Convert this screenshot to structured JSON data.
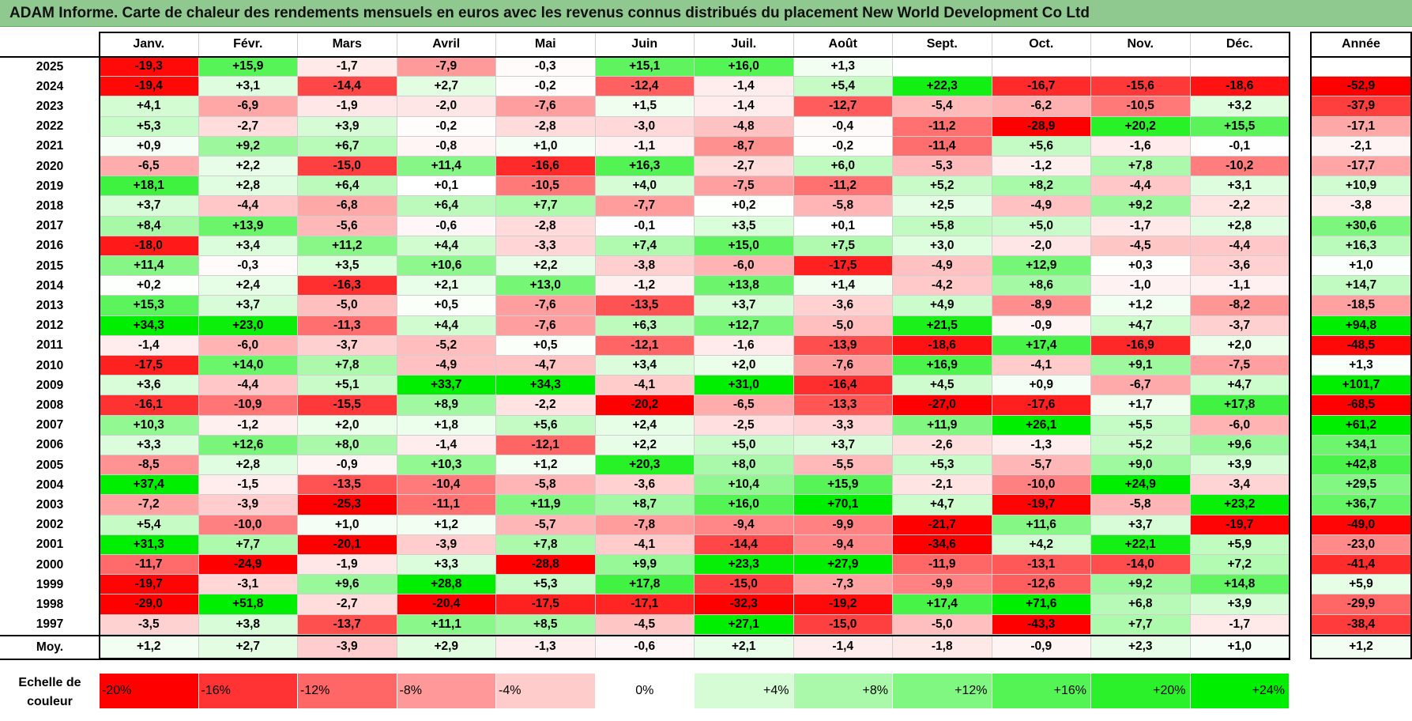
{
  "title": "ADAM Informe. Carte de chaleur des rendements mensuels en euros avec les revenus connus distribués du placement New World Development Co Ltd",
  "colors": {
    "title_bg": "#8fc98f",
    "red_strong": "#ff0000",
    "green_strong": "#00ee00",
    "neutral": "#ffffff"
  },
  "chart_data": {
    "type": "heatmap",
    "title": "ADAM Informe. Carte de chaleur des rendements mensuels en euros avec les revenus connus distribués du placement New World Development Co Ltd",
    "months": [
      "Janv.",
      "Févr.",
      "Mars",
      "Avril",
      "Mai",
      "Juin",
      "Juil.",
      "Août",
      "Sept.",
      "Oct.",
      "Nov.",
      "Déc."
    ],
    "year_header": "Année",
    "rows": [
      {
        "year": "2025",
        "values": [
          "-19,3",
          "+15,9",
          "-1,7",
          "-7,9",
          "-0,3",
          "+15,1",
          "+16,0",
          "+1,3",
          "",
          "",
          "",
          ""
        ],
        "annual": ""
      },
      {
        "year": "2024",
        "values": [
          "-19,4",
          "+3,1",
          "-14,4",
          "+2,7",
          "-0,2",
          "-12,4",
          "-1,4",
          "+5,4",
          "+22,3",
          "-16,7",
          "-15,6",
          "-18,6"
        ],
        "annual": "-52,9"
      },
      {
        "year": "2023",
        "values": [
          "+4,1",
          "-6,9",
          "-1,9",
          "-2,0",
          "-7,6",
          "+1,5",
          "-1,4",
          "-12,7",
          "-5,4",
          "-6,2",
          "-10,5",
          "+3,2"
        ],
        "annual": "-37,9"
      },
      {
        "year": "2022",
        "values": [
          "+5,3",
          "-2,7",
          "+3,9",
          "-0,2",
          "-2,8",
          "-3,0",
          "-4,8",
          "-0,4",
          "-11,2",
          "-28,9",
          "+20,2",
          "+15,5"
        ],
        "annual": "-17,1"
      },
      {
        "year": "2021",
        "values": [
          "+0,9",
          "+9,2",
          "+6,7",
          "-0,8",
          "+1,0",
          "-1,1",
          "-8,7",
          "-0,2",
          "-11,4",
          "+5,6",
          "-1,6",
          "-0,1"
        ],
        "annual": "-2,1"
      },
      {
        "year": "2020",
        "values": [
          "-6,5",
          "+2,2",
          "-15,0",
          "+11,4",
          "-16,6",
          "+16,3",
          "-2,7",
          "+6,0",
          "-5,3",
          "-1,2",
          "+7,8",
          "-10,2"
        ],
        "annual": "-17,7"
      },
      {
        "year": "2019",
        "values": [
          "+18,1",
          "+2,8",
          "+6,4",
          "+0,1",
          "-10,5",
          "+4,0",
          "-7,5",
          "-11,2",
          "+5,2",
          "+8,2",
          "-4,4",
          "+3,1"
        ],
        "annual": "+10,9"
      },
      {
        "year": "2018",
        "values": [
          "+3,7",
          "-4,4",
          "-6,8",
          "+6,4",
          "+7,7",
          "-7,7",
          "+0,2",
          "-5,8",
          "+2,5",
          "-4,9",
          "+9,2",
          "-2,2"
        ],
        "annual": "-3,8"
      },
      {
        "year": "2017",
        "values": [
          "+8,4",
          "+13,9",
          "-5,6",
          "-0,6",
          "-2,8",
          "-0,1",
          "+3,5",
          "+0,1",
          "+5,8",
          "+5,0",
          "-1,7",
          "+2,8"
        ],
        "annual": "+30,6"
      },
      {
        "year": "2016",
        "values": [
          "-18,0",
          "+3,4",
          "+11,2",
          "+4,4",
          "-3,3",
          "+7,4",
          "+15,0",
          "+7,5",
          "+3,0",
          "-2,0",
          "-4,5",
          "-4,4"
        ],
        "annual": "+16,3"
      },
      {
        "year": "2015",
        "values": [
          "+11,4",
          "-0,3",
          "+3,5",
          "+10,6",
          "+2,2",
          "-3,8",
          "-6,0",
          "-17,5",
          "-4,9",
          "+12,9",
          "+0,3",
          "-3,6"
        ],
        "annual": "+1,0"
      },
      {
        "year": "2014",
        "values": [
          "+0,2",
          "+2,4",
          "-16,3",
          "+2,1",
          "+13,0",
          "-1,2",
          "+13,8",
          "+1,4",
          "-4,2",
          "+8,6",
          "-1,0",
          "-1,1"
        ],
        "annual": "+14,7"
      },
      {
        "year": "2013",
        "values": [
          "+15,3",
          "+3,7",
          "-5,0",
          "+0,5",
          "-7,6",
          "-13,5",
          "+3,7",
          "-3,6",
          "+4,9",
          "-8,9",
          "+1,2",
          "-8,2"
        ],
        "annual": "-18,5"
      },
      {
        "year": "2012",
        "values": [
          "+34,3",
          "+23,0",
          "-11,3",
          "+4,4",
          "-7,6",
          "+6,3",
          "+12,7",
          "-5,0",
          "+21,5",
          "-0,9",
          "+4,7",
          "-3,7"
        ],
        "annual": "+94,8"
      },
      {
        "year": "2011",
        "values": [
          "-1,4",
          "-6,0",
          "-3,7",
          "-5,2",
          "+0,5",
          "-12,1",
          "-1,6",
          "-13,9",
          "-18,6",
          "+17,4",
          "-16,9",
          "+2,0"
        ],
        "annual": "-48,5"
      },
      {
        "year": "2010",
        "values": [
          "-17,5",
          "+14,0",
          "+7,8",
          "-4,9",
          "-4,7",
          "+3,4",
          "+2,0",
          "-7,6",
          "+16,9",
          "-4,1",
          "+9,1",
          "-7,5"
        ],
        "annual": "+1,3"
      },
      {
        "year": "2009",
        "values": [
          "+3,6",
          "-4,4",
          "+5,1",
          "+33,7",
          "+34,3",
          "-4,1",
          "+31,0",
          "-16,4",
          "+4,5",
          "+0,9",
          "-6,7",
          "+4,7"
        ],
        "annual": "+101,7"
      },
      {
        "year": "2008",
        "values": [
          "-16,1",
          "-10,9",
          "-15,5",
          "+8,9",
          "-2,2",
          "-20,2",
          "-6,5",
          "-13,3",
          "-27,0",
          "-17,6",
          "+1,7",
          "+17,8"
        ],
        "annual": "-68,5"
      },
      {
        "year": "2007",
        "values": [
          "+10,3",
          "-1,2",
          "+2,0",
          "+1,8",
          "+5,6",
          "+2,4",
          "-2,5",
          "-3,3",
          "+11,9",
          "+26,1",
          "+5,5",
          "-6,0"
        ],
        "annual": "+61,2"
      },
      {
        "year": "2006",
        "values": [
          "+3,3",
          "+12,6",
          "+8,0",
          "-1,4",
          "-12,1",
          "+2,2",
          "+5,0",
          "+3,7",
          "-2,6",
          "-1,3",
          "+5,2",
          "+9,6"
        ],
        "annual": "+34,1"
      },
      {
        "year": "2005",
        "values": [
          "-8,5",
          "+2,8",
          "-0,9",
          "+10,3",
          "+1,2",
          "+20,3",
          "+8,0",
          "-5,5",
          "+5,3",
          "-5,7",
          "+9,0",
          "+3,9"
        ],
        "annual": "+42,8"
      },
      {
        "year": "2004",
        "values": [
          "+37,4",
          "-1,5",
          "-13,5",
          "-10,4",
          "-5,8",
          "-3,6",
          "+10,4",
          "+15,9",
          "-2,1",
          "-10,0",
          "+24,9",
          "-3,4"
        ],
        "annual": "+29,5"
      },
      {
        "year": "2003",
        "values": [
          "-7,2",
          "-3,9",
          "-25,3",
          "-11,1",
          "+11,9",
          "+8,7",
          "+16,0",
          "+70,1",
          "+4,7",
          "-19,7",
          "-5,8",
          "+23,2"
        ],
        "annual": "+36,7"
      },
      {
        "year": "2002",
        "values": [
          "+5,4",
          "-10,0",
          "+1,0",
          "+1,2",
          "-5,7",
          "-7,8",
          "-9,4",
          "-9,9",
          "-21,7",
          "+11,6",
          "+3,7",
          "-19,7"
        ],
        "annual": "-49,0"
      },
      {
        "year": "2001",
        "values": [
          "+31,3",
          "+7,7",
          "-20,1",
          "-3,9",
          "+7,8",
          "-4,1",
          "-14,4",
          "-9,4",
          "-34,6",
          "+4,2",
          "+22,1",
          "+5,9"
        ],
        "annual": "-23,0"
      },
      {
        "year": "2000",
        "values": [
          "-11,7",
          "-24,9",
          "-1,9",
          "+3,3",
          "-28,8",
          "+9,9",
          "+23,3",
          "+27,9",
          "-11,9",
          "-13,1",
          "-14,0",
          "+7,2"
        ],
        "annual": "-41,4"
      },
      {
        "year": "1999",
        "values": [
          "-19,7",
          "-3,1",
          "+9,6",
          "+28,8",
          "+5,3",
          "+17,8",
          "-15,0",
          "-7,3",
          "-9,9",
          "-12,6",
          "+9,2",
          "+14,8"
        ],
        "annual": "+5,9"
      },
      {
        "year": "1998",
        "values": [
          "-29,0",
          "+51,8",
          "-2,7",
          "-20,4",
          "-17,5",
          "-17,1",
          "-32,3",
          "-19,2",
          "+17,4",
          "+71,6",
          "+6,8",
          "+3,9"
        ],
        "annual": "-29,9"
      },
      {
        "year": "1997",
        "values": [
          "-3,5",
          "+3,8",
          "-13,7",
          "+11,1",
          "+8,5",
          "-4,5",
          "+27,1",
          "-15,0",
          "-5,0",
          "-43,3",
          "+7,7",
          "-1,7"
        ],
        "annual": "-38,4"
      }
    ],
    "average": {
      "label": "Moy.",
      "values": [
        "+1,2",
        "+2,7",
        "-3,9",
        "+2,9",
        "-1,3",
        "-0,6",
        "+2,1",
        "-1,4",
        "-1,8",
        "-0,9",
        "+2,3",
        "+1,0"
      ],
      "annual": "+1,2"
    },
    "scale": {
      "label": "Echelle de couleur",
      "items": [
        "-20%",
        "-16%",
        "-12%",
        "-8%",
        "-4%",
        "0%",
        "+4%",
        "+8%",
        "+12%",
        "+16%",
        "+20%",
        "+24%"
      ]
    }
  }
}
